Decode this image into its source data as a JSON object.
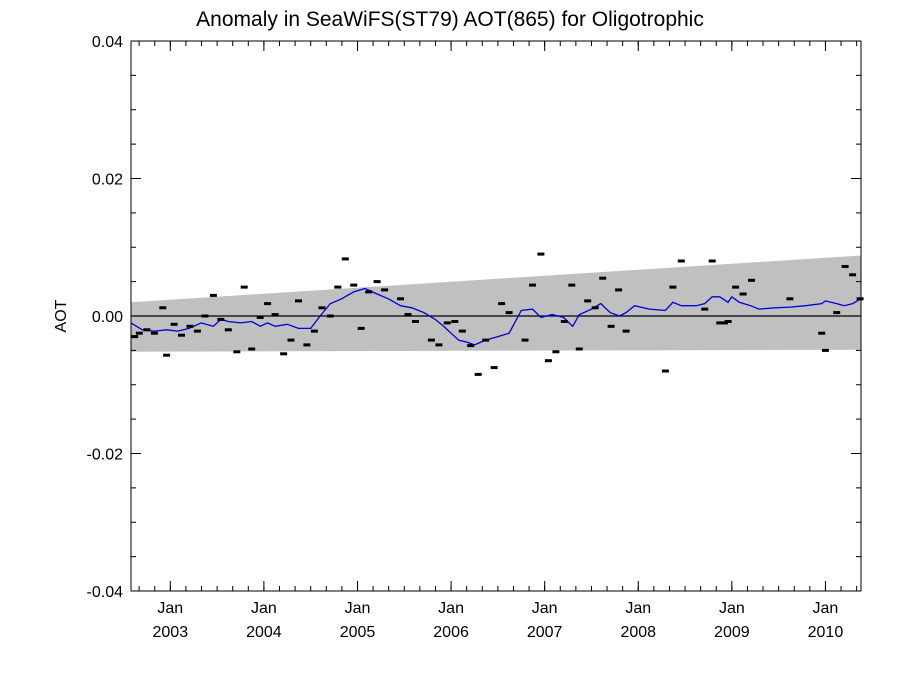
{
  "chart_data": {
    "type": "scatter",
    "title": "Anomaly in SeaWiFS(ST79) AOT(865) for Oligotrophic",
    "xlabel": "",
    "ylabel": "AOT",
    "ylim": [
      -0.04,
      0.04
    ],
    "xlim": [
      2002.58,
      2010.38
    ],
    "y_ticks": [
      {
        "value": 0.04,
        "label": "0.04"
      },
      {
        "value": 0.02,
        "label": "0.02"
      },
      {
        "value": 0.0,
        "label": "0.00"
      },
      {
        "value": -0.02,
        "label": "-0.02"
      },
      {
        "value": -0.04,
        "label": "-0.04"
      }
    ],
    "x_ticks": [
      {
        "value": 2003.0,
        "month": "Jan",
        "year": "2003"
      },
      {
        "value": 2004.0,
        "month": "Jan",
        "year": "2004"
      },
      {
        "value": 2005.0,
        "month": "Jan",
        "year": "2005"
      },
      {
        "value": 2006.0,
        "month": "Jan",
        "year": "2006"
      },
      {
        "value": 2007.0,
        "month": "Jan",
        "year": "2007"
      },
      {
        "value": 2008.0,
        "month": "Jan",
        "year": "2008"
      },
      {
        "value": 2009.0,
        "month": "Jan",
        "year": "2009"
      },
      {
        "value": 2010.0,
        "month": "Jan",
        "year": "2010"
      }
    ],
    "grid": false,
    "zero_line": true,
    "band": {
      "x": [
        2002.58,
        2010.38
      ],
      "upper": [
        0.002,
        0.0088
      ],
      "lower": [
        -0.0052,
        -0.0049
      ],
      "color": "#c0c0c0"
    },
    "series": [
      {
        "kind": "markers",
        "color": "#000000",
        "points": [
          [
            2002.62,
            -0.003
          ],
          [
            2002.67,
            -0.0025
          ],
          [
            2002.75,
            -0.002
          ],
          [
            2002.83,
            -0.0025
          ],
          [
            2002.92,
            0.0012
          ],
          [
            2002.96,
            -0.0057
          ],
          [
            2003.04,
            -0.0012
          ],
          [
            2003.12,
            -0.0028
          ],
          [
            2003.21,
            -0.0015
          ],
          [
            2003.29,
            -0.0022
          ],
          [
            2003.37,
            0.0
          ],
          [
            2003.46,
            0.003
          ],
          [
            2003.54,
            -0.0005
          ],
          [
            2003.62,
            -0.002
          ],
          [
            2003.71,
            -0.0052
          ],
          [
            2003.79,
            0.0042
          ],
          [
            2003.87,
            -0.0048
          ],
          [
            2003.96,
            -0.0002
          ],
          [
            2004.04,
            0.0018
          ],
          [
            2004.12,
            0.0002
          ],
          [
            2004.21,
            -0.0055
          ],
          [
            2004.29,
            -0.0035
          ],
          [
            2004.37,
            0.0022
          ],
          [
            2004.46,
            -0.0042
          ],
          [
            2004.54,
            -0.0022
          ],
          [
            2004.62,
            0.0012
          ],
          [
            2004.71,
            0.0
          ],
          [
            2004.79,
            0.0042
          ],
          [
            2004.87,
            0.0083
          ],
          [
            2004.96,
            0.0045
          ],
          [
            2005.04,
            -0.0018
          ],
          [
            2005.12,
            0.0035
          ],
          [
            2005.21,
            0.005
          ],
          [
            2005.29,
            0.0038
          ],
          [
            2005.46,
            0.0025
          ],
          [
            2005.54,
            0.0002
          ],
          [
            2005.62,
            -0.0008
          ],
          [
            2005.79,
            -0.0035
          ],
          [
            2005.87,
            -0.0042
          ],
          [
            2005.96,
            -0.001
          ],
          [
            2006.04,
            -0.0008
          ],
          [
            2006.12,
            -0.0022
          ],
          [
            2006.21,
            -0.0043
          ],
          [
            2006.29,
            -0.0085
          ],
          [
            2006.37,
            -0.0035
          ],
          [
            2006.46,
            -0.0075
          ],
          [
            2006.54,
            0.0018
          ],
          [
            2006.62,
            0.0005
          ],
          [
            2006.79,
            -0.0035
          ],
          [
            2006.87,
            0.0045
          ],
          [
            2006.96,
            0.009
          ],
          [
            2007.04,
            -0.0065
          ],
          [
            2007.12,
            -0.0052
          ],
          [
            2007.21,
            -0.0008
          ],
          [
            2007.29,
            0.0045
          ],
          [
            2007.37,
            -0.0048
          ],
          [
            2007.46,
            0.0022
          ],
          [
            2007.54,
            0.0012
          ],
          [
            2007.62,
            0.0055
          ],
          [
            2007.71,
            -0.0015
          ],
          [
            2007.79,
            0.0038
          ],
          [
            2007.87,
            -0.0022
          ],
          [
            2008.29,
            -0.008
          ],
          [
            2008.37,
            0.0042
          ],
          [
            2008.46,
            0.008
          ],
          [
            2008.71,
            0.001
          ],
          [
            2008.79,
            0.008
          ],
          [
            2008.87,
            -0.001
          ],
          [
            2008.92,
            -0.001
          ],
          [
            2008.96,
            -0.0008
          ],
          [
            2009.04,
            0.0042
          ],
          [
            2009.12,
            0.0032
          ],
          [
            2009.21,
            0.0052
          ],
          [
            2009.62,
            0.0025
          ],
          [
            2009.96,
            -0.0025
          ],
          [
            2010.0,
            -0.005
          ],
          [
            2010.12,
            0.0005
          ],
          [
            2010.21,
            0.0072
          ],
          [
            2010.29,
            0.006
          ],
          [
            2010.37,
            0.0025
          ]
        ]
      },
      {
        "kind": "line",
        "color": "#0000dd",
        "points": [
          [
            2002.58,
            -0.001
          ],
          [
            2002.7,
            -0.002
          ],
          [
            2002.83,
            -0.0022
          ],
          [
            2002.96,
            -0.002
          ],
          [
            2003.08,
            -0.0022
          ],
          [
            2003.2,
            -0.0018
          ],
          [
            2003.33,
            -0.001
          ],
          [
            2003.46,
            -0.0015
          ],
          [
            2003.54,
            -0.0005
          ],
          [
            2003.62,
            -0.0008
          ],
          [
            2003.75,
            -0.001
          ],
          [
            2003.87,
            -0.0008
          ],
          [
            2003.96,
            -0.0015
          ],
          [
            2004.04,
            -0.001
          ],
          [
            2004.12,
            -0.0015
          ],
          [
            2004.25,
            -0.0012
          ],
          [
            2004.37,
            -0.0018
          ],
          [
            2004.5,
            -0.0018
          ],
          [
            2004.6,
            0.0
          ],
          [
            2004.71,
            0.0018
          ],
          [
            2004.83,
            0.0025
          ],
          [
            2004.96,
            0.0035
          ],
          [
            2005.08,
            0.004
          ],
          [
            2005.21,
            0.0032
          ],
          [
            2005.33,
            0.0025
          ],
          [
            2005.46,
            0.0015
          ],
          [
            2005.58,
            0.0012
          ],
          [
            2005.71,
            0.0005
          ],
          [
            2005.83,
            -0.0005
          ],
          [
            2005.92,
            -0.0015
          ],
          [
            2006.0,
            -0.0025
          ],
          [
            2006.08,
            -0.0035
          ],
          [
            2006.17,
            -0.0038
          ],
          [
            2006.25,
            -0.0042
          ],
          [
            2006.37,
            -0.0035
          ],
          [
            2006.5,
            -0.003
          ],
          [
            2006.62,
            -0.0025
          ],
          [
            2006.75,
            0.0008
          ],
          [
            2006.87,
            0.001
          ],
          [
            2006.96,
            -0.0002
          ],
          [
            2007.08,
            0.0002
          ],
          [
            2007.2,
            -0.0002
          ],
          [
            2007.3,
            -0.0015
          ],
          [
            2007.37,
            0.0002
          ],
          [
            2007.5,
            0.001
          ],
          [
            2007.6,
            0.0018
          ],
          [
            2007.7,
            0.0005
          ],
          [
            2007.8,
            0.0
          ],
          [
            2007.87,
            0.0005
          ],
          [
            2007.96,
            0.0015
          ],
          [
            2008.12,
            0.001
          ],
          [
            2008.29,
            0.0008
          ],
          [
            2008.37,
            0.002
          ],
          [
            2008.46,
            0.0015
          ],
          [
            2008.62,
            0.0015
          ],
          [
            2008.71,
            0.0018
          ],
          [
            2008.79,
            0.0028
          ],
          [
            2008.87,
            0.0028
          ],
          [
            2008.96,
            0.002
          ],
          [
            2009.0,
            0.0028
          ],
          [
            2009.08,
            0.002
          ],
          [
            2009.2,
            0.0015
          ],
          [
            2009.29,
            0.001
          ],
          [
            2009.46,
            0.0012
          ],
          [
            2009.62,
            0.0013
          ],
          [
            2009.79,
            0.0015
          ],
          [
            2009.96,
            0.0018
          ],
          [
            2010.0,
            0.0022
          ],
          [
            2010.12,
            0.0018
          ],
          [
            2010.2,
            0.0015
          ],
          [
            2010.29,
            0.0018
          ],
          [
            2010.38,
            0.0025
          ]
        ]
      }
    ]
  }
}
